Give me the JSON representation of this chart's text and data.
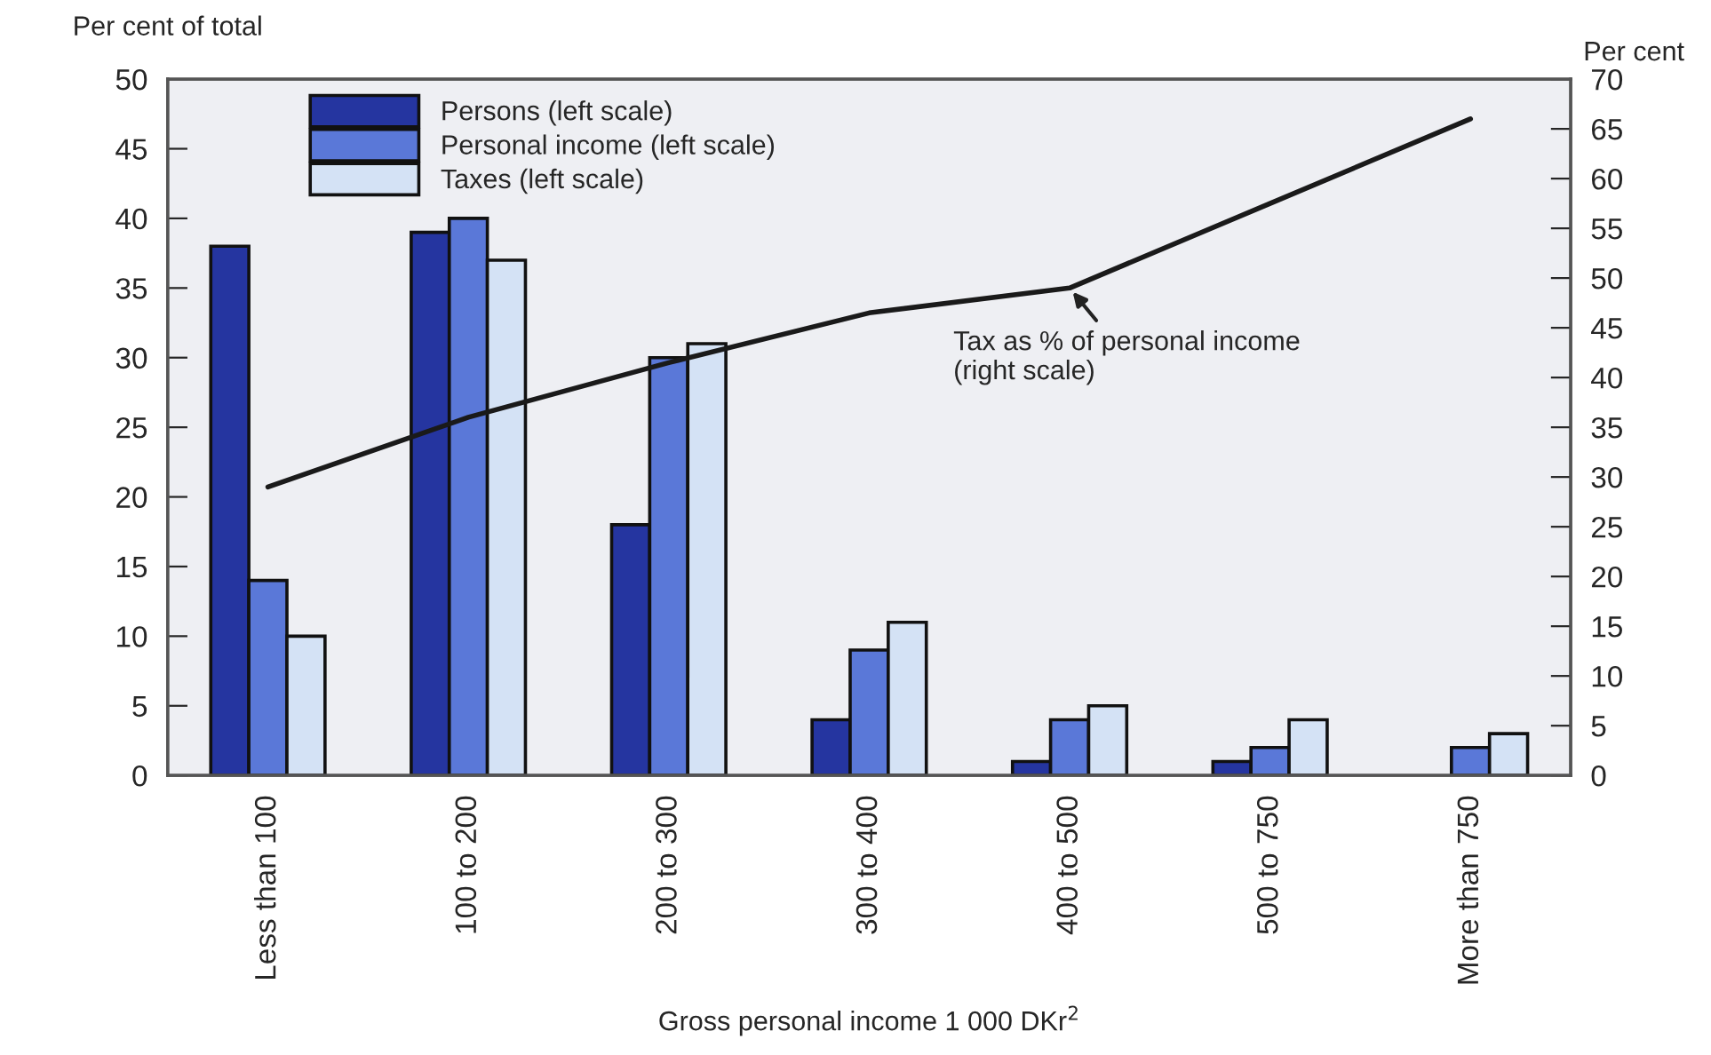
{
  "chart_data": {
    "type": "bar",
    "xlabel": "Gross personal income 1 000 DKr$^{2}$",
    "ylabel": "Per cent of total",
    "y2label": "Per cent",
    "categories": [
      "Less than 100",
      "100 to 200",
      "200 to 300",
      "300 to 400",
      "400 to 500",
      "500 to 750",
      "More than 750"
    ],
    "series": [
      {
        "name": "Persons (left scale)",
        "color": "#2535a0",
        "values": [
          38,
          39,
          18,
          4,
          1,
          1,
          null
        ]
      },
      {
        "name": "Personal income (left scale)",
        "color": "#5a78d8",
        "values": [
          14,
          40,
          30,
          9,
          4,
          2,
          2
        ]
      },
      {
        "name": "Taxes (left scale)",
        "color": "#d4e2f5",
        "values": [
          10,
          37,
          31,
          11,
          5,
          4,
          3
        ]
      },
      {
        "type": "line",
        "axis": "y2",
        "color": "#1a1a1a",
        "values": [
          29,
          36,
          41.5,
          46.5,
          49,
          57.5,
          66
        ]
      }
    ],
    "ylim": [
      0,
      50
    ],
    "yticks": [
      0,
      5,
      10,
      15,
      20,
      25,
      30,
      35,
      40,
      45,
      50
    ],
    "y2lim": [
      0,
      70
    ],
    "y2ticks": [
      0,
      5,
      10,
      15,
      20,
      25,
      30,
      35,
      40,
      45,
      50,
      55,
      60,
      65,
      70
    ],
    "annotations": [
      "Tax as % of personal income\n(right scale)"
    ],
    "legend": "top left",
    "grid": false
  }
}
